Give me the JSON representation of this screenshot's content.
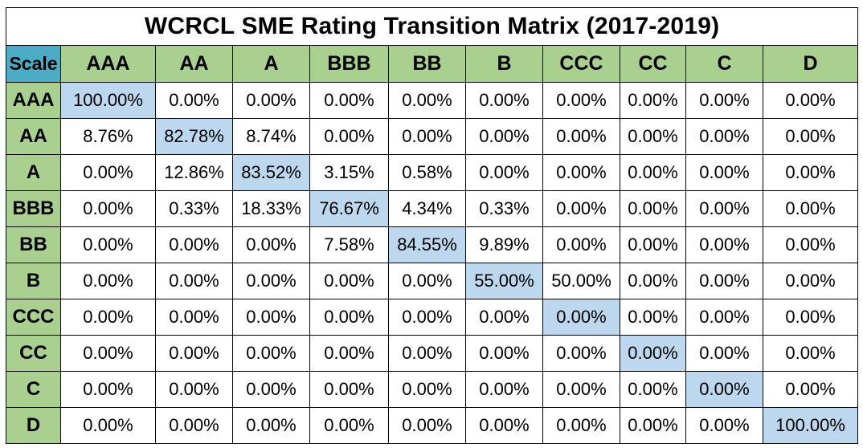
{
  "chart_data": {
    "type": "table",
    "title": "WCRCL SME Rating Transition Matrix (2017-2019)",
    "corner_label": "Scale",
    "columns": [
      "AAA",
      "AA",
      "A",
      "BBB",
      "BB",
      "B",
      "CCC",
      "CC",
      "C",
      "D"
    ],
    "rows": [
      {
        "label": "AAA",
        "values": [
          "100.00%",
          "0.00%",
          "0.00%",
          "0.00%",
          "0.00%",
          "0.00%",
          "0.00%",
          "0.00%",
          "0.00%",
          "0.00%"
        ]
      },
      {
        "label": "AA",
        "values": [
          "8.76%",
          "82.78%",
          "8.74%",
          "0.00%",
          "0.00%",
          "0.00%",
          "0.00%",
          "0.00%",
          "0.00%",
          "0.00%"
        ]
      },
      {
        "label": "A",
        "values": [
          "0.00%",
          "12.86%",
          "83.52%",
          "3.15%",
          "0.58%",
          "0.00%",
          "0.00%",
          "0.00%",
          "0.00%",
          "0.00%"
        ]
      },
      {
        "label": "BBB",
        "values": [
          "0.00%",
          "0.33%",
          "18.33%",
          "76.67%",
          "4.34%",
          "0.33%",
          "0.00%",
          "0.00%",
          "0.00%",
          "0.00%"
        ]
      },
      {
        "label": "BB",
        "values": [
          "0.00%",
          "0.00%",
          "0.00%",
          "7.58%",
          "84.55%",
          "9.89%",
          "0.00%",
          "0.00%",
          "0.00%",
          "0.00%"
        ]
      },
      {
        "label": "B",
        "values": [
          "0.00%",
          "0.00%",
          "0.00%",
          "0.00%",
          "0.00%",
          "55.00%",
          "50.00%",
          "0.00%",
          "0.00%",
          "0.00%"
        ]
      },
      {
        "label": "CCC",
        "values": [
          "0.00%",
          "0.00%",
          "0.00%",
          "0.00%",
          "0.00%",
          "0.00%",
          "0.00%",
          "0.00%",
          "0.00%",
          "0.00%"
        ]
      },
      {
        "label": "CC",
        "values": [
          "0.00%",
          "0.00%",
          "0.00%",
          "0.00%",
          "0.00%",
          "0.00%",
          "0.00%",
          "0.00%",
          "0.00%",
          "0.00%"
        ]
      },
      {
        "label": "C",
        "values": [
          "0.00%",
          "0.00%",
          "0.00%",
          "0.00%",
          "0.00%",
          "0.00%",
          "0.00%",
          "0.00%",
          "0.00%",
          "0.00%"
        ]
      },
      {
        "label": "D",
        "values": [
          "0.00%",
          "0.00%",
          "0.00%",
          "0.00%",
          "0.00%",
          "0.00%",
          "0.00%",
          "0.00%",
          "0.00%",
          "100.00%"
        ]
      }
    ],
    "highlight": "diagonal"
  },
  "colors": {
    "header_green": "#a9d08e",
    "corner_blue": "#4bacc6",
    "diagonal_blue": "#bdd7ee",
    "cell_white": "#ffffff",
    "border": "#000000"
  }
}
